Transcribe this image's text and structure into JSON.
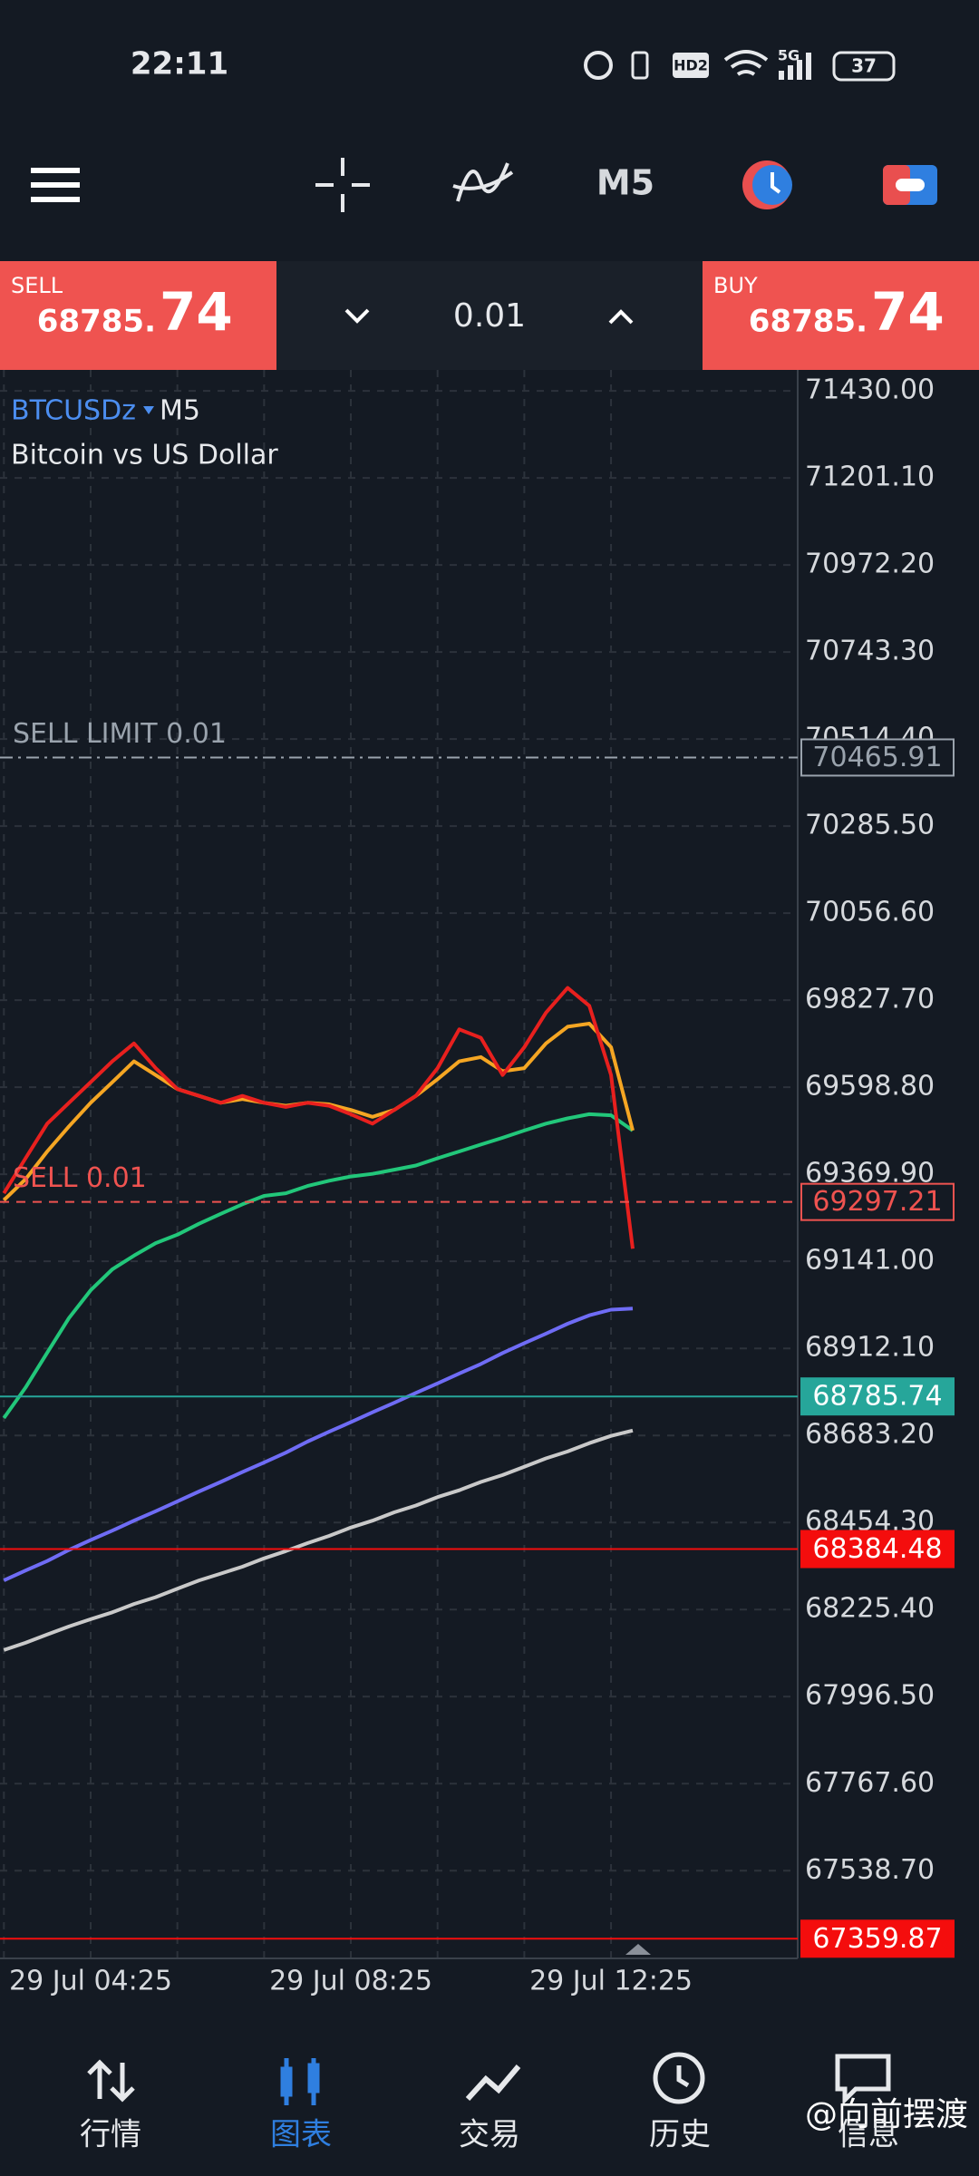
{
  "status_bar": {
    "time": "22:11",
    "hd": "HD2",
    "network": "5G",
    "battery": "37"
  },
  "toolbar": {
    "timeframe": "M5"
  },
  "trade_bar": {
    "sell_label": "SELL",
    "sell_price_main": "68785.",
    "sell_price_big": "74",
    "lot": "0.01",
    "buy_label": "BUY",
    "buy_price_main": "68785.",
    "buy_price_big": "74"
  },
  "chart_data": {
    "type": "line",
    "symbol": "BTCUSDz",
    "timeframe": "M5",
    "description": "Bitcoin vs US Dollar",
    "categories": [
      null,
      null,
      null,
      null,
      "29 Jul 04:25",
      null,
      null,
      null,
      null,
      null,
      null,
      null,
      null,
      null,
      null,
      null,
      "29 Jul 08:25",
      null,
      null,
      null,
      null,
      null,
      null,
      null,
      null,
      null,
      null,
      null,
      "29 Jul 12:25",
      null
    ],
    "series": [
      {
        "color": "#c9c9c9",
        "values": [
          68119,
          68138,
          68160,
          68181,
          68200,
          68218,
          68240,
          68258,
          68280,
          68302,
          68320,
          68338,
          68360,
          68379,
          68400,
          68419,
          68441,
          68459,
          68481,
          68499,
          68521,
          68539,
          68561,
          68579,
          68601,
          68623,
          68641,
          68663,
          68682,
          68696
        ]
      },
      {
        "color": "#6f6cf5",
        "values": [
          68302,
          68328,
          68353,
          68382,
          68408,
          68433,
          68459,
          68484,
          68510,
          68536,
          68561,
          68587,
          68612,
          68638,
          68667,
          68693,
          68718,
          68744,
          68769,
          68795,
          68820,
          68846,
          68871,
          68900,
          68926,
          68951,
          68977,
          68999,
          69014,
          69017
        ]
      },
      {
        "color": "#22c77a",
        "values": [
          68729,
          68809,
          68901,
          68992,
          69065,
          69120,
          69156,
          69189,
          69211,
          69240,
          69266,
          69291,
          69313,
          69320,
          69339,
          69353,
          69364,
          69371,
          69382,
          69393,
          69412,
          69430,
          69448,
          69466,
          69485,
          69503,
          69517,
          69528,
          69525,
          69485
        ]
      },
      {
        "color": "#f5a623",
        "values": [
          69302,
          69357,
          69430,
          69496,
          69558,
          69612,
          69667,
          69631,
          69594,
          69576,
          69558,
          69568,
          69558,
          69550,
          69558,
          69554,
          69539,
          69521,
          69539,
          69576,
          69620,
          69667,
          69678,
          69641,
          69649,
          69714,
          69758,
          69766,
          69704,
          69485
        ]
      },
      {
        "color": "#e8201e",
        "values": [
          69320,
          69412,
          69503,
          69558,
          69612,
          69667,
          69714,
          69649,
          69594,
          69576,
          69558,
          69576,
          69558,
          69547,
          69558,
          69550,
          69528,
          69503,
          69539,
          69576,
          69649,
          69751,
          69729,
          69631,
          69704,
          69795,
          69860,
          69813,
          69631,
          69174
        ]
      }
    ],
    "ylim": [
      67320,
      71485
    ],
    "yticks": [
      {
        "value": 71430,
        "label": "71430.00"
      },
      {
        "value": 71201.1,
        "label": "71201.10"
      },
      {
        "value": 70972.2,
        "label": "70972.20"
      },
      {
        "value": 70743.3,
        "label": "70743.30"
      },
      {
        "value": 70514.4,
        "label": "70514.40"
      },
      {
        "value": 70285.5,
        "label": "70285.50"
      },
      {
        "value": 70056.6,
        "label": "70056.60"
      },
      {
        "value": 69827.7,
        "label": "69827.70"
      },
      {
        "value": 69598.8,
        "label": "69598.80"
      },
      {
        "value": 69369.9,
        "label": "69369.90"
      },
      {
        "value": 69141,
        "label": "69141.00"
      },
      {
        "value": 68912.1,
        "label": "68912.10"
      },
      {
        "value": 68683.2,
        "label": "68683.20"
      },
      {
        "value": 68454.3,
        "label": "68454.30"
      },
      {
        "value": 68225.4,
        "label": "68225.40"
      },
      {
        "value": 67996.5,
        "label": "67996.50"
      },
      {
        "value": 67767.6,
        "label": "67767.60"
      },
      {
        "value": 67538.7,
        "label": "67538.70"
      }
    ],
    "grid": true,
    "levels": [
      {
        "text": "SELL LIMIT 0.01",
        "value": 70465.91,
        "label": "70465.91",
        "color": "#9aa3ad",
        "style": "dash-dot",
        "box": "outline"
      },
      {
        "text": "SELL 0.01",
        "value": 69297.21,
        "label": "69297.21",
        "color": "#ef5350",
        "style": "dashed",
        "box": "outline"
      },
      {
        "value": 68785.74,
        "label": "68785.74",
        "color": "#26a69a",
        "style": "solid",
        "box": "filled"
      },
      {
        "value": 68384.48,
        "label": "68384.48",
        "color": "#f40d0d",
        "style": "solid",
        "box": "filled"
      },
      {
        "value": 67359.87,
        "label": "67359.87",
        "color": "#f40d0d",
        "style": "solid",
        "box": "filled"
      }
    ]
  },
  "nav": {
    "items": [
      {
        "label": "行情"
      },
      {
        "label": "图表"
      },
      {
        "label": "交易"
      },
      {
        "label": "历史"
      },
      {
        "label": "信息"
      }
    ],
    "active": 1
  },
  "watermark": "@向前摆渡"
}
